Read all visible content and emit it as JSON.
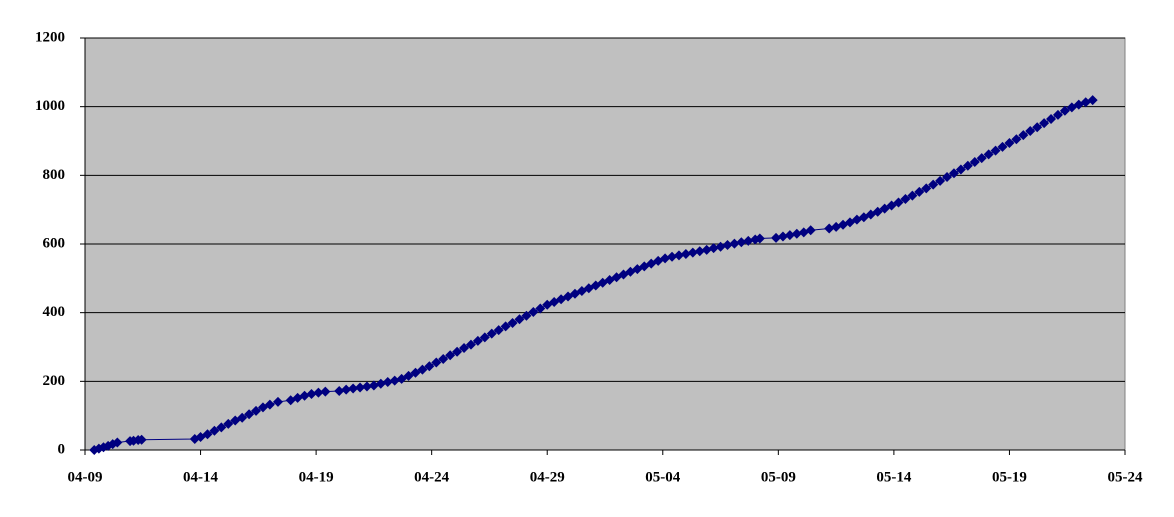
{
  "chart_data": {
    "type": "line",
    "x": [
      0.4,
      0.6,
      0.8,
      1.0,
      1.2,
      1.4,
      1.95,
      2.1,
      2.3,
      2.45,
      4.75,
      5.0,
      5.3,
      5.6,
      5.9,
      6.2,
      6.5,
      6.8,
      7.1,
      7.4,
      7.7,
      8.0,
      8.35,
      8.9,
      9.2,
      9.5,
      9.8,
      10.1,
      10.4,
      11.0,
      11.3,
      11.6,
      11.9,
      12.2,
      12.5,
      12.8,
      13.1,
      13.4,
      13.7,
      14.0,
      14.3,
      14.6,
      14.9,
      15.2,
      15.5,
      15.8,
      16.1,
      16.4,
      16.7,
      17.0,
      17.3,
      17.6,
      17.9,
      18.2,
      18.5,
      18.8,
      19.1,
      19.4,
      19.7,
      20.0,
      20.3,
      20.6,
      20.9,
      21.2,
      21.5,
      21.8,
      22.1,
      22.4,
      22.7,
      23.0,
      23.3,
      23.6,
      23.9,
      24.2,
      24.5,
      24.8,
      25.1,
      25.4,
      25.7,
      26.0,
      26.3,
      26.6,
      26.9,
      27.2,
      27.5,
      27.8,
      28.1,
      28.4,
      28.7,
      29.0,
      29.2,
      29.9,
      30.2,
      30.5,
      30.8,
      31.1,
      31.4,
      32.2,
      32.5,
      32.8,
      33.1,
      33.4,
      33.7,
      34.0,
      34.3,
      34.6,
      34.9,
      35.2,
      35.5,
      35.8,
      36.1,
      36.4,
      36.7,
      37.0,
      37.3,
      37.6,
      37.9,
      38.2,
      38.5,
      38.8,
      39.1,
      39.4,
      39.7,
      40.0,
      40.3,
      40.6,
      40.9,
      41.2,
      41.5,
      41.8,
      42.1,
      42.4,
      42.7,
      43.0,
      43.3,
      43.6
    ],
    "values": [
      0,
      4,
      8,
      12,
      17,
      22,
      26,
      27,
      29,
      30,
      32,
      38,
      46,
      56,
      66,
      76,
      86,
      94,
      104,
      114,
      124,
      132,
      140,
      145,
      152,
      158,
      163,
      167,
      170,
      172,
      176,
      179,
      182,
      185,
      188,
      193,
      198,
      202,
      207,
      216,
      225,
      234,
      244,
      255,
      265,
      276,
      286,
      297,
      307,
      318,
      328,
      339,
      349,
      360,
      370,
      381,
      391,
      402,
      412,
      423,
      431,
      439,
      447,
      455,
      463,
      471,
      479,
      487,
      495,
      503,
      511,
      519,
      527,
      535,
      543,
      551,
      558,
      563,
      567,
      571,
      575,
      579,
      583,
      588,
      592,
      597,
      601,
      605,
      609,
      613,
      616,
      618,
      622,
      626,
      630,
      634,
      640,
      645,
      650,
      656,
      663,
      671,
      678,
      686,
      694,
      703,
      712,
      721,
      731,
      741,
      752,
      762,
      773,
      784,
      795,
      806,
      817,
      828,
      839,
      850,
      861,
      872,
      883,
      894,
      905,
      917,
      929,
      940,
      952,
      964,
      976,
      988,
      998,
      1006,
      1013,
      1019
    ],
    "color": "#000080",
    "xlim": [
      0,
      45
    ],
    "xticks": [
      {
        "value": 0,
        "label": "04-09"
      },
      {
        "value": 5,
        "label": "04-14"
      },
      {
        "value": 10,
        "label": "04-19"
      },
      {
        "value": 15,
        "label": "04-24"
      },
      {
        "value": 20,
        "label": "04-29"
      },
      {
        "value": 25,
        "label": "05-04"
      },
      {
        "value": 30,
        "label": "05-09"
      },
      {
        "value": 35,
        "label": "05-14"
      },
      {
        "value": 40,
        "label": "05-19"
      },
      {
        "value": 45,
        "label": "05-24"
      }
    ],
    "ylim": [
      0,
      1200
    ],
    "yticks": [
      0,
      200,
      400,
      600,
      800,
      1000,
      1200
    ],
    "grid": true
  }
}
